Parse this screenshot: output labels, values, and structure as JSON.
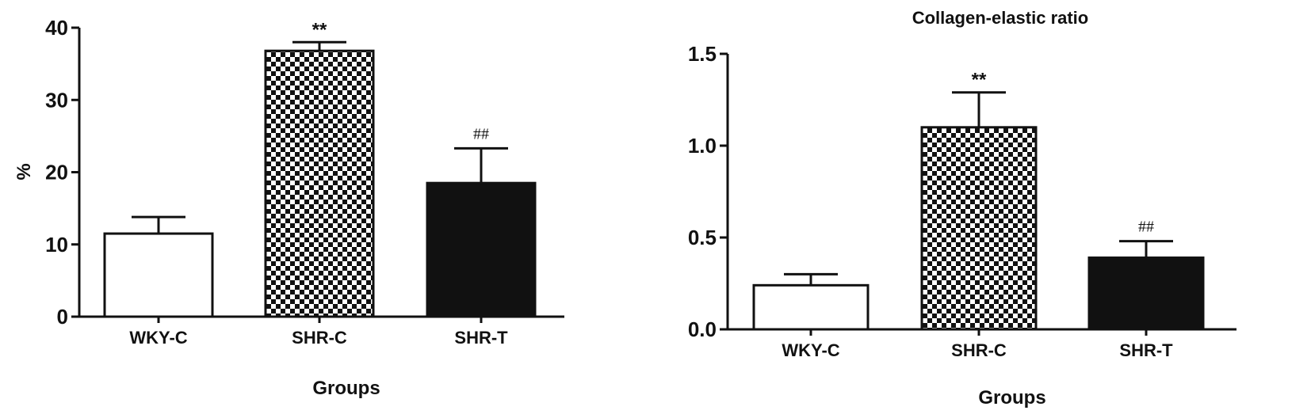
{
  "chart_data": [
    {
      "type": "bar",
      "title": "",
      "xlabel": "Groups",
      "ylabel": "%",
      "categories": [
        "WKY-C",
        "SHR-C",
        "SHR-T"
      ],
      "values": [
        11.5,
        36.8,
        18.5
      ],
      "errors": [
        2.3,
        1.2,
        4.8
      ],
      "annotations": [
        "",
        "**",
        "##"
      ],
      "fills": [
        "white",
        "checkered",
        "black"
      ],
      "ylim": [
        0,
        40
      ],
      "yticks": [
        0,
        10,
        20,
        30,
        40
      ],
      "ytick_labels": [
        "0",
        "10",
        "20",
        "30",
        "40"
      ],
      "grid": false,
      "legend": "none"
    },
    {
      "type": "bar",
      "title": "Collagen-elastic ratio",
      "xlabel": "Groups",
      "ylabel": "",
      "categories": [
        "WKY-C",
        "SHR-C",
        "SHR-T"
      ],
      "values": [
        0.24,
        1.1,
        0.39
      ],
      "errors": [
        0.06,
        0.19,
        0.09
      ],
      "annotations": [
        "",
        "**",
        "##"
      ],
      "fills": [
        "white",
        "checkered",
        "black"
      ],
      "ylim": [
        0,
        1.5
      ],
      "yticks": [
        0,
        0.5,
        1.0,
        1.5
      ],
      "ytick_labels": [
        "0.0",
        "0.5",
        "1.0",
        "1.5"
      ],
      "grid": false,
      "legend": "none"
    }
  ],
  "colors": {
    "ink": "#111111",
    "background": "#ffffff"
  }
}
